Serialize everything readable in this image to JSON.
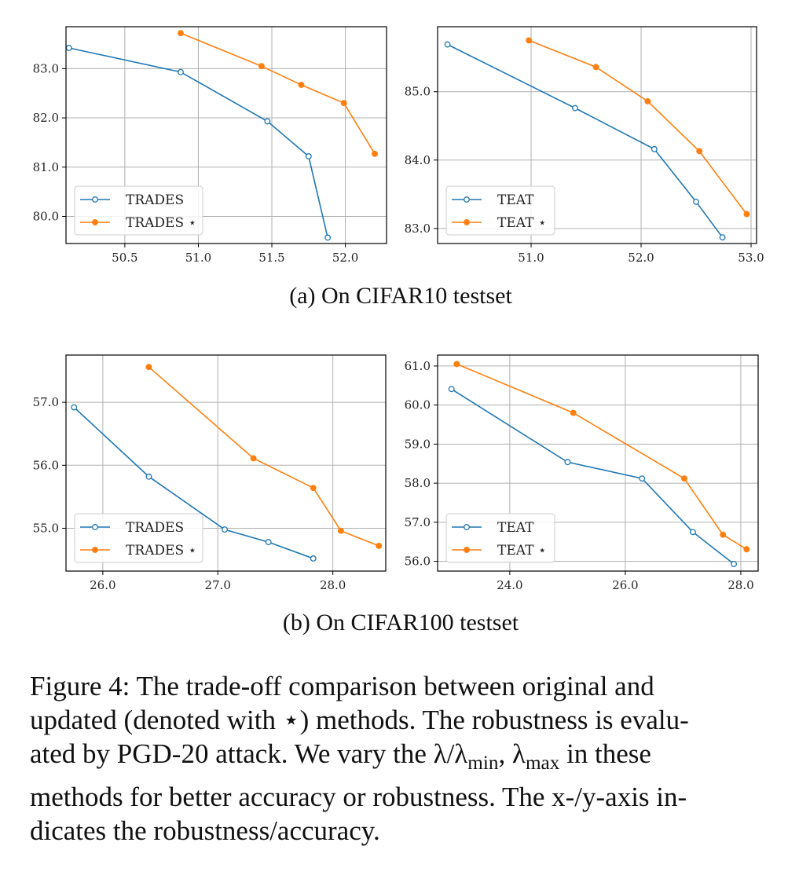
{
  "subcaptions": [
    "(a) On CIFAR10 testset",
    "(b) On CIFAR100 testset"
  ],
  "caption": {
    "lines": [
      "Figure 4: The trade-off comparison between original and",
      "updated (denoted with ⋆) methods. The robustness is evalu-",
      "ated by PGD-20 attack. We vary the λ/λ",
      "methods for better accuracy or robustness. The x-/y-axis in-",
      "dicates the robustness/accuracy."
    ],
    "line3_sub1": "min",
    "line3_mid": ", λ",
    "line3_sub2": "max",
    "line3_end": " in these"
  },
  "colors": {
    "original": "#1f77b4",
    "updated": "#ff7f0e",
    "grid": "#b0b0b0"
  },
  "chart_data": [
    {
      "type": "line",
      "panel": "a-left",
      "xlim": [
        50.1,
        52.28
      ],
      "ylim": [
        79.45,
        83.85
      ],
      "xticks": [
        50.5,
        51.0,
        51.5,
        52.0
      ],
      "yticks": [
        80.0,
        81.0,
        82.0,
        83.0
      ],
      "legend": "lower-left",
      "grid": true,
      "series": [
        {
          "name": "TRADES",
          "style": "open",
          "x": [
            50.12,
            50.88,
            51.47,
            51.75,
            51.88
          ],
          "y": [
            83.42,
            82.93,
            81.93,
            81.22,
            79.57
          ]
        },
        {
          "name": "TRADES ⋆",
          "style": "filled",
          "x": [
            50.88,
            51.43,
            51.7,
            51.99,
            52.2
          ],
          "y": [
            83.72,
            83.05,
            82.67,
            82.3,
            81.27
          ]
        }
      ]
    },
    {
      "type": "line",
      "panel": "a-right",
      "xlim": [
        50.15,
        53.05
      ],
      "ylim": [
        82.78,
        85.95
      ],
      "xticks": [
        51.0,
        52.0,
        53.0
      ],
      "yticks": [
        83.0,
        84.0,
        85.0
      ],
      "legend": "lower-left",
      "grid": true,
      "series": [
        {
          "name": "TEAT",
          "style": "open",
          "x": [
            50.24,
            51.4,
            52.12,
            52.5,
            52.74
          ],
          "y": [
            85.69,
            84.76,
            84.16,
            83.39,
            82.87
          ]
        },
        {
          "name": "TEAT ⋆",
          "style": "filled",
          "x": [
            50.98,
            51.59,
            52.06,
            52.53,
            52.96
          ],
          "y": [
            85.75,
            85.36,
            84.86,
            84.13,
            83.21
          ]
        }
      ]
    },
    {
      "type": "line",
      "panel": "b-left",
      "xlim": [
        25.68,
        28.46
      ],
      "ylim": [
        54.32,
        57.75
      ],
      "xticks": [
        26.0,
        27.0,
        28.0
      ],
      "yticks": [
        55.0,
        56.0,
        57.0
      ],
      "legend": "lower-left",
      "grid": true,
      "series": [
        {
          "name": "TRADES",
          "style": "open",
          "x": [
            25.75,
            26.4,
            27.06,
            27.44,
            27.83
          ],
          "y": [
            56.92,
            55.82,
            54.98,
            54.78,
            54.52
          ]
        },
        {
          "name": "TRADES ⋆",
          "style": "filled",
          "x": [
            26.4,
            27.31,
            27.83,
            28.07,
            28.4
          ],
          "y": [
            57.56,
            56.11,
            55.64,
            54.96,
            54.72
          ]
        }
      ]
    },
    {
      "type": "line",
      "panel": "b-right",
      "xlim": [
        22.75,
        28.3
      ],
      "ylim": [
        55.75,
        61.28
      ],
      "xticks": [
        24.0,
        26.0,
        28.0
      ],
      "yticks": [
        56.0,
        57.0,
        58.0,
        59.0,
        60.0,
        61.0
      ],
      "legend": "lower-left",
      "grid": true,
      "series": [
        {
          "name": "TEAT",
          "style": "open",
          "x": [
            22.99,
            25.0,
            26.29,
            27.17,
            27.88
          ],
          "y": [
            60.41,
            58.54,
            58.12,
            56.75,
            55.93
          ]
        },
        {
          "name": "TEAT ⋆",
          "style": "filled",
          "x": [
            23.08,
            25.1,
            27.02,
            27.69,
            28.1
          ],
          "y": [
            61.05,
            59.8,
            58.12,
            56.68,
            56.31
          ]
        }
      ]
    }
  ]
}
